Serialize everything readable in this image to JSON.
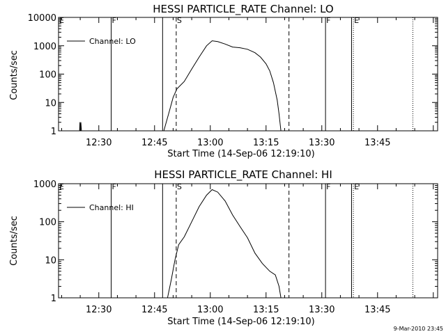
{
  "chart_data": [
    {
      "type": "line",
      "title": "HESSI PARTICLE_RATE Channel: LO",
      "xlabel": "Start Time (14-Sep-06 12:19:10)",
      "ylabel": "Counts/sec",
      "y_scale": "log",
      "xlim": [
        "12:19:10",
        "14:01:10"
      ],
      "ylim": [
        1,
        10000
      ],
      "x_tick_labels": [
        "12:30",
        "12:45",
        "13:00",
        "13:15",
        "13:30",
        "13:45"
      ],
      "y_tick_labels": [
        "1",
        "10",
        "100",
        "1000",
        "10000"
      ],
      "legend": {
        "location": "top-left",
        "entries": [
          "Channel: LO"
        ]
      },
      "series": [
        {
          "name": "Channel: LO",
          "points": [
            [
              "12:24:50",
              1
            ],
            [
              "12:24:55",
              2
            ],
            [
              "12:25:05",
              1
            ],
            [
              "12:25:10",
              2
            ],
            [
              "12:25:20",
              1
            ],
            [
              "12:47:30",
              1
            ],
            [
              "12:49:00",
              5
            ],
            [
              "12:50:00",
              15
            ],
            [
              "12:51:00",
              30
            ],
            [
              "12:53:00",
              55
            ],
            [
              "12:55:00",
              150
            ],
            [
              "12:57:00",
              400
            ],
            [
              "12:59:00",
              1000
            ],
            [
              "13:00:30",
              1500
            ],
            [
              "13:02:00",
              1400
            ],
            [
              "13:04:00",
              1150
            ],
            [
              "13:06:00",
              900
            ],
            [
              "13:08:00",
              850
            ],
            [
              "13:10:00",
              750
            ],
            [
              "13:12:00",
              570
            ],
            [
              "13:13:30",
              400
            ],
            [
              "13:15:00",
              230
            ],
            [
              "13:16:00",
              130
            ],
            [
              "13:17:00",
              50
            ],
            [
              "13:18:00",
              12
            ],
            [
              "13:18:30",
              4
            ],
            [
              "13:19:00",
              1
            ]
          ]
        }
      ],
      "vertical_markers": [
        {
          "label": "E",
          "time": "12:19:10",
          "style": "solid"
        },
        {
          "label": "F",
          "time": "12:33:20",
          "style": "solid"
        },
        {
          "label": "",
          "time": "12:47:10",
          "style": "solid"
        },
        {
          "label": "S",
          "time": "12:50:50",
          "style": "dashed"
        },
        {
          "label": "",
          "time": "13:21:10",
          "style": "dashed"
        },
        {
          "label": "F",
          "time": "13:31:00",
          "style": "solid"
        },
        {
          "label": "",
          "time": "13:38:00",
          "style": "solid"
        },
        {
          "label": "E",
          "time": "13:38:30",
          "style": "dotted"
        },
        {
          "label": "",
          "time": "13:54:30",
          "style": "dotted"
        }
      ]
    },
    {
      "type": "line",
      "title": "HESSI PARTICLE_RATE Channel: HI",
      "xlabel": "Start Time (14-Sep-06 12:19:10)",
      "ylabel": "Counts/sec",
      "y_scale": "log",
      "xlim": [
        "12:19:10",
        "14:01:10"
      ],
      "ylim": [
        1,
        1000
      ],
      "x_tick_labels": [
        "12:30",
        "12:45",
        "13:00",
        "13:15",
        "13:30",
        "13:45"
      ],
      "y_tick_labels": [
        "1",
        "10",
        "100",
        "1000"
      ],
      "legend": {
        "location": "top-left",
        "entries": [
          "Channel: HI"
        ]
      },
      "series": [
        {
          "name": "Channel: HI",
          "points": [
            [
              "12:48:30",
              1
            ],
            [
              "12:49:30",
              3
            ],
            [
              "12:50:30",
              10
            ],
            [
              "12:51:30",
              25
            ],
            [
              "12:53:00",
              40
            ],
            [
              "12:55:00",
              100
            ],
            [
              "12:57:00",
              250
            ],
            [
              "12:59:00",
              500
            ],
            [
              "13:00:30",
              700
            ],
            [
              "13:02:00",
              600
            ],
            [
              "13:04:00",
              350
            ],
            [
              "13:06:00",
              150
            ],
            [
              "13:08:00",
              75
            ],
            [
              "13:10:00",
              38
            ],
            [
              "13:12:00",
              15
            ],
            [
              "13:14:00",
              8
            ],
            [
              "13:16:00",
              5
            ],
            [
              "13:17:30",
              4
            ],
            [
              "13:18:30",
              2
            ],
            [
              "13:19:00",
              1
            ]
          ]
        }
      ],
      "vertical_markers": [
        {
          "label": "E",
          "time": "12:19:10",
          "style": "solid"
        },
        {
          "label": "F",
          "time": "12:33:20",
          "style": "solid"
        },
        {
          "label": "",
          "time": "12:47:10",
          "style": "solid"
        },
        {
          "label": "S",
          "time": "12:50:50",
          "style": "dashed"
        },
        {
          "label": "",
          "time": "13:21:10",
          "style": "dashed"
        },
        {
          "label": "F",
          "time": "13:31:00",
          "style": "solid"
        },
        {
          "label": "",
          "time": "13:38:00",
          "style": "solid"
        },
        {
          "label": "E",
          "time": "13:38:30",
          "style": "dotted"
        },
        {
          "label": "",
          "time": "13:54:30",
          "style": "dotted"
        }
      ]
    }
  ],
  "footer": {
    "timestamp": "9-Mar-2010 23:45"
  }
}
